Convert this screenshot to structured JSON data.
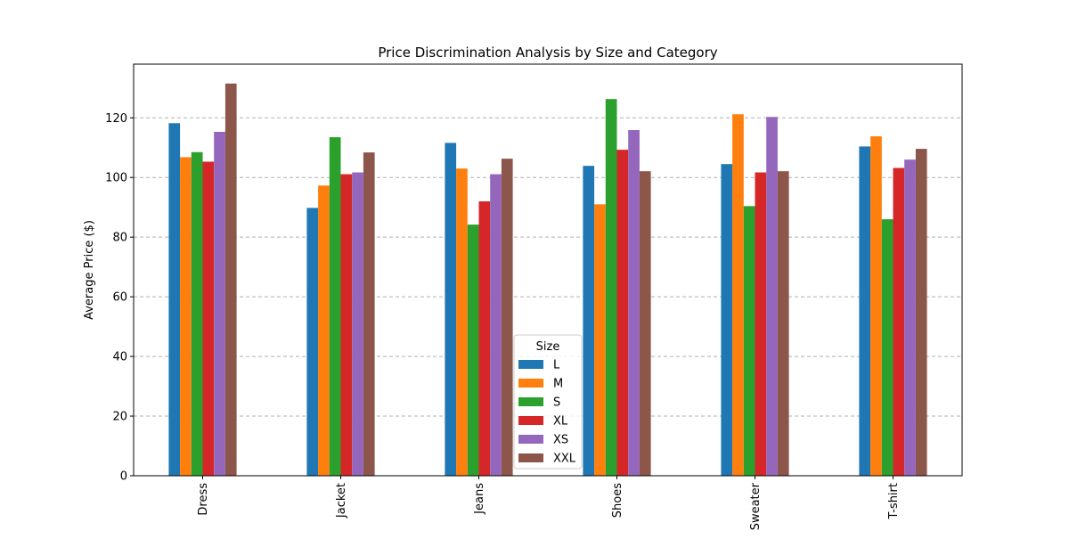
{
  "chart_data": {
    "type": "bar",
    "title": "Price Discrimination Analysis by Size and Category",
    "xlabel": "",
    "ylabel": "Average Price ($)",
    "categories": [
      "Dress",
      "Jacket",
      "Jeans",
      "Shoes",
      "Sweater",
      "T-shirt"
    ],
    "ylim": [
      0,
      138
    ],
    "yticks": [
      0,
      20,
      40,
      60,
      80,
      100,
      120
    ],
    "grid": "y-dashed",
    "legend": {
      "title": "Size",
      "placement": "lower-center"
    },
    "series": [
      {
        "name": "L",
        "color": "#1f77b4",
        "values": [
          118.2,
          89.8,
          111.6,
          103.9,
          104.5,
          110.4
        ]
      },
      {
        "name": "M",
        "color": "#ff7f0e",
        "values": [
          106.8,
          97.3,
          103.0,
          91.0,
          121.2,
          113.8
        ]
      },
      {
        "name": "S",
        "color": "#2ca02c",
        "values": [
          108.5,
          113.5,
          84.2,
          126.3,
          90.4,
          86.0
        ]
      },
      {
        "name": "XL",
        "color": "#d62728",
        "values": [
          105.3,
          101.1,
          92.0,
          109.3,
          101.7,
          103.2
        ]
      },
      {
        "name": "XS",
        "color": "#9467bd",
        "values": [
          115.3,
          101.7,
          101.1,
          115.9,
          120.3,
          106.0
        ]
      },
      {
        "name": "XXL",
        "color": "#8c564b",
        "values": [
          131.5,
          108.4,
          106.3,
          102.1,
          102.1,
          109.6
        ]
      }
    ]
  }
}
